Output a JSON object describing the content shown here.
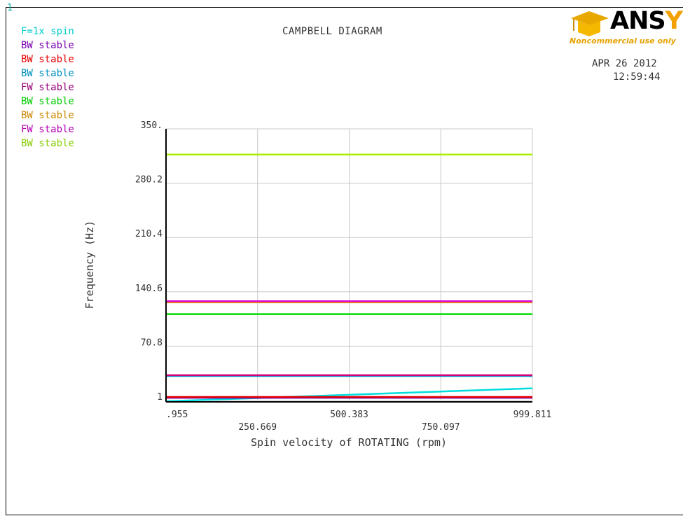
{
  "window_number": "1",
  "title": "CAMPBELL DIAGRAM",
  "date": "APR 26 2012",
  "time": "12:59:44",
  "logo": {
    "word_main": "ANS",
    "word_accent": "YS",
    "note": "Noncommercial use only"
  },
  "legend": [
    {
      "label": "F=1x spin",
      "color": "#00cccc"
    },
    {
      "label": "BW stable",
      "color": "#7a00b3"
    },
    {
      "label": "BW stable",
      "color": "#e60000"
    },
    {
      "label": "BW stable",
      "color": "#008fbf"
    },
    {
      "label": "FW stable",
      "color": "#99007a"
    },
    {
      "label": "BW stable",
      "color": "#00cc00"
    },
    {
      "label": "BW stable",
      "color": "#cc8800"
    },
    {
      "label": "FW stable",
      "color": "#b300b3"
    },
    {
      "label": "BW stable",
      "color": "#88cc00"
    }
  ],
  "chart_data": {
    "type": "line",
    "title": "CAMPBELL DIAGRAM",
    "xlabel": "Spin velocity of ROTATING (rpm)",
    "ylabel": "Frequency (Hz)",
    "xlim": [
      0.955,
      999.811
    ],
    "ylim": [
      1,
      350
    ],
    "x_ticks": [
      0.955,
      250.669,
      500.383,
      750.097,
      999.811
    ],
    "x_tick_labels": [
      ".955",
      "250.669",
      "500.383",
      "750.097",
      "999.811"
    ],
    "y_ticks": [
      1,
      70.8,
      140.6,
      210.4,
      280.2,
      350
    ],
    "y_tick_labels": [
      "1",
      "70.8",
      "140.6",
      "210.4",
      "280.2",
      "350."
    ],
    "grid": true,
    "series": [
      {
        "name": "F=1x spin",
        "color": "#00dddd",
        "x": [
          0.955,
          999.811
        ],
        "y": [
          0.016,
          16.66
        ]
      },
      {
        "name": "BW stable",
        "color": "#7a00b3",
        "x": [
          0.955,
          999.811
        ],
        "y": [
          4.5,
          4.5
        ]
      },
      {
        "name": "BW stable",
        "color": "#e60000",
        "x": [
          0.955,
          999.811
        ],
        "y": [
          5.5,
          5.5
        ]
      },
      {
        "name": "BW stable",
        "color": "#0099cc",
        "x": [
          0.955,
          999.811
        ],
        "y": [
          32.5,
          32.5
        ]
      },
      {
        "name": "FW stable",
        "color": "#d4007a",
        "x": [
          0.955,
          999.811
        ],
        "y": [
          33.5,
          33.5
        ]
      },
      {
        "name": "BW stable",
        "color": "#00dd00",
        "x": [
          0.955,
          999.811
        ],
        "y": [
          112.0,
          112.0
        ]
      },
      {
        "name": "BW stable",
        "color": "#e69900",
        "x": [
          0.955,
          999.811
        ],
        "y": [
          127.0,
          127.0
        ]
      },
      {
        "name": "FW stable",
        "color": "#dd00dd",
        "x": [
          0.955,
          999.811
        ],
        "y": [
          128.5,
          128.5
        ]
      },
      {
        "name": "BW stable",
        "color": "#aaee00",
        "x": [
          0.955,
          999.811
        ],
        "y": [
          317.0,
          317.0
        ]
      }
    ]
  }
}
